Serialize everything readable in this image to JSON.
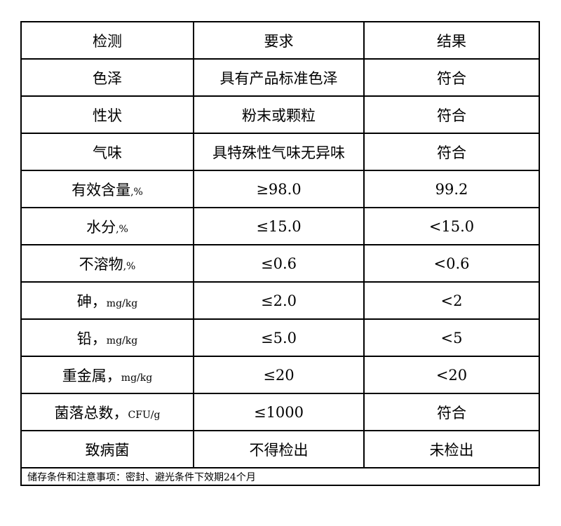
{
  "header": [
    "检测",
    "要求",
    "结果"
  ],
  "rows": [
    {
      "item": "色泽",
      "unit": "",
      "requirement": "具有产品标准色泽",
      "result": "符合"
    },
    {
      "item": "性状",
      "unit": "",
      "requirement": "粉末或颗粒",
      "result": "符合"
    },
    {
      "item": "气味",
      "unit": "",
      "requirement": "具特殊性气味无异味",
      "result": "符合"
    },
    {
      "item": "有效含量",
      "unit": ",%",
      "requirement": "≥98.0",
      "result": "99.2"
    },
    {
      "item": "水分",
      "unit": ",%",
      "requirement": "≤15.0",
      "result": "<15.0"
    },
    {
      "item": "不溶物",
      "unit": ",%",
      "requirement": "≤0.6",
      "result": "<0.6"
    },
    {
      "item": "砷，",
      "unit": "mg/kg",
      "requirement": "≤2.0",
      "result": "<2"
    },
    {
      "item": "铅，",
      "unit": "mg/kg",
      "requirement": "≤5.0",
      "result": "<5"
    },
    {
      "item": "重金属，",
      "unit": "mg/kg",
      "requirement": "≤20",
      "result": "<20"
    },
    {
      "item": "菌落总数，",
      "unit": "CFU/g",
      "requirement": "≤1000",
      "result": "符合"
    },
    {
      "item": "致病菌",
      "unit": "",
      "requirement": "不得检出",
      "result": "未检出"
    }
  ],
  "note": "储存条件和注意事项：密封、避光条件下效期24个月"
}
